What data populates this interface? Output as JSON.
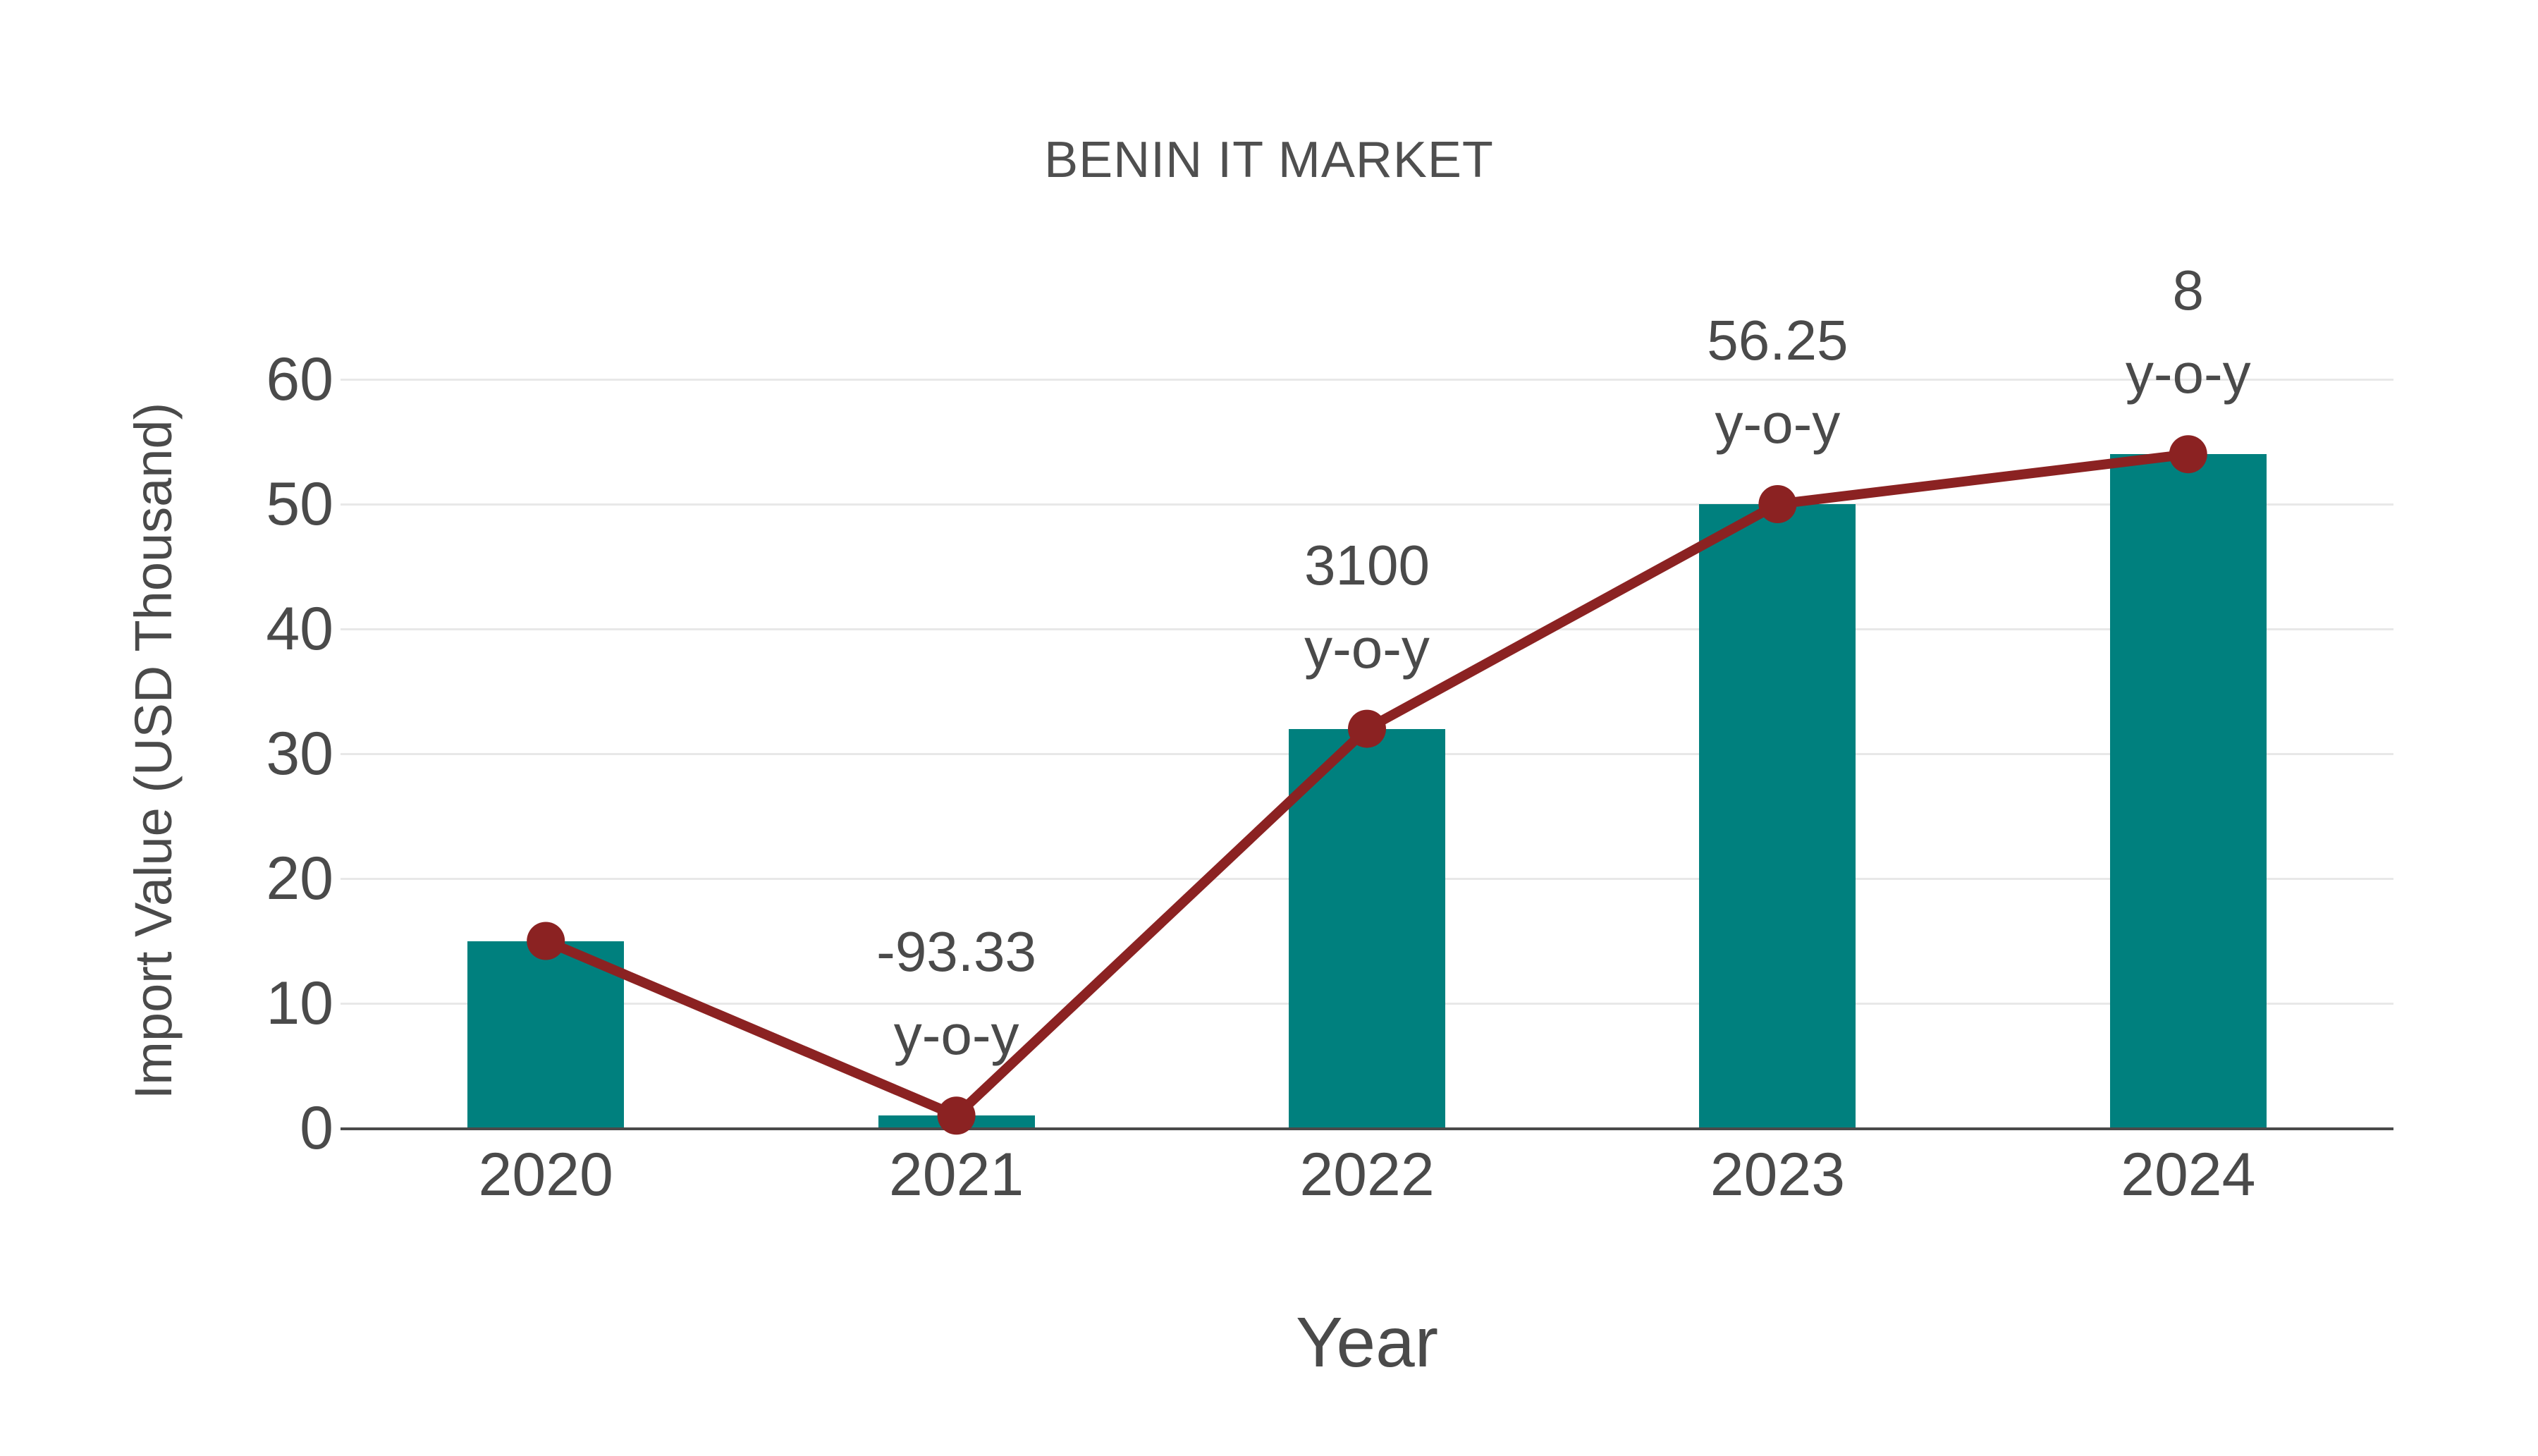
{
  "title": "BENIN IT MARKET",
  "chart_data": {
    "type": "bar",
    "categories": [
      "2020",
      "2021",
      "2022",
      "2023",
      "2024"
    ],
    "series": [
      {
        "name": "import-value-bars",
        "type": "bar",
        "values": [
          15,
          1,
          32,
          50,
          54
        ]
      },
      {
        "name": "import-value-line",
        "type": "line",
        "values": [
          15,
          1,
          32,
          50,
          54
        ]
      }
    ],
    "annotations": [
      {
        "category": "2021",
        "value": "-93.33",
        "suffix": "y-o-y"
      },
      {
        "category": "2022",
        "value": "3100",
        "suffix": "y-o-y"
      },
      {
        "category": "2023",
        "value": "56.25",
        "suffix": "y-o-y"
      },
      {
        "category": "2024",
        "value": "8",
        "suffix": "y-o-y"
      }
    ],
    "xlabel": "Year",
    "ylabel": "Import Value (USD Thousand)",
    "yticks": [
      0,
      10,
      20,
      30,
      40,
      50,
      60
    ],
    "ylim": [
      0,
      60
    ],
    "grid": true,
    "legend_position": "none",
    "colors": {
      "bar": "#00807E",
      "line": "#8B2222",
      "marker": "#8B2222",
      "grid": "#E8E8E8",
      "axis": "#4A4A4A",
      "text": "#4A4A4A"
    }
  }
}
